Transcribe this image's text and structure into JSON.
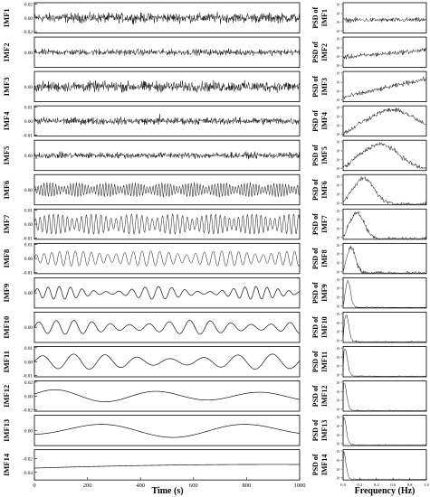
{
  "chart_data": {
    "type": "line",
    "time_xlabel": "Time (s)",
    "time_xlim": [
      0,
      1000
    ],
    "time_xticks": [
      "0",
      "200",
      "400",
      "600",
      "800",
      "1000"
    ],
    "freq_xlabel": "Frequency (Hz)",
    "freq_xlim": [
      0,
      1.0
    ],
    "freq_xticks": [
      "0.0",
      "0.2",
      "0.4",
      "0.6",
      "0.8",
      "1.0"
    ],
    "psd_prefix": "PSD of",
    "psd_ytick_labels": [
      "10⁻²",
      "10⁻⁴",
      "10⁻⁶",
      "10⁻⁸"
    ],
    "imfs": [
      {
        "name": "IMF1",
        "yticks": [
          "0.02",
          "0.00",
          "-0.02"
        ],
        "ylim": [
          -0.02,
          0.02
        ]
      },
      {
        "name": "IMF2",
        "yticks": [
          "0.00"
        ],
        "ylim": [
          -0.01,
          0.01
        ]
      },
      {
        "name": "IMF3",
        "yticks": [
          "0.00"
        ],
        "ylim": [
          -0.01,
          0.01
        ]
      },
      {
        "name": "IMF4",
        "yticks": [
          "0.01",
          "0.00",
          "-0.01"
        ],
        "ylim": [
          -0.01,
          0.01
        ]
      },
      {
        "name": "IMF5",
        "yticks": [
          "0.00"
        ],
        "ylim": [
          -0.01,
          0.01
        ]
      },
      {
        "name": "IMF6",
        "yticks": [
          "0.00"
        ],
        "ylim": [
          -0.01,
          0.01
        ]
      },
      {
        "name": "IMF7",
        "yticks": [
          "0.01",
          "0.00",
          "-0.01"
        ],
        "ylim": [
          -0.01,
          0.01
        ]
      },
      {
        "name": "IMF8",
        "yticks": [
          "0.01",
          "0.00",
          "-0.01"
        ],
        "ylim": [
          -0.01,
          0.01
        ]
      },
      {
        "name": "IMF9",
        "yticks": [
          "0.00"
        ],
        "ylim": [
          -0.01,
          0.01
        ]
      },
      {
        "name": "IMF10",
        "yticks": [
          "0.00"
        ],
        "ylim": [
          -0.01,
          0.01
        ]
      },
      {
        "name": "IMF11",
        "yticks": [
          "0.01",
          "0.00",
          "-0.01"
        ],
        "ylim": [
          -0.01,
          0.01
        ]
      },
      {
        "name": "IMF12",
        "yticks": [
          "0.02",
          "0.00",
          "-0.02"
        ],
        "ylim": [
          -0.02,
          0.02
        ]
      },
      {
        "name": "IMF13",
        "yticks": [
          "0.00"
        ],
        "ylim": [
          -0.02,
          0.02
        ]
      },
      {
        "name": "IMF14",
        "yticks": [
          "-0.02",
          "-0.04"
        ],
        "ylim": [
          -0.045,
          -0.015
        ]
      }
    ],
    "grid": false,
    "legend": "none"
  }
}
